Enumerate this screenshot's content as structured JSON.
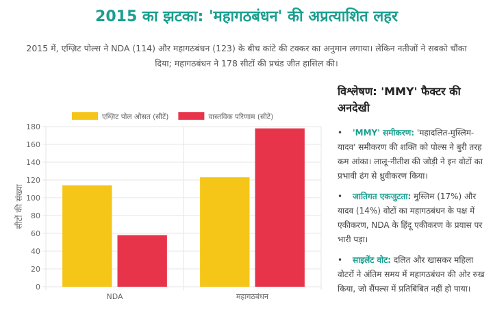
{
  "header": {
    "title": "2015 का झटका: 'महागठबंधन' की अप्रत्याशित लहर",
    "subtitle": "2015 में, एग्ज़िट पोल्स ने NDA (114) और महागठबंधन (123) के बीच कांटे की टक्कर का अनुमान लगाया। लेकिन नतीजों ने सबको चौंका दिया; महागठबंधन ने 178 सीटों की प्रचंड जीत हासिल की।"
  },
  "colors": {
    "accent": "#1a9e8f",
    "exit_poll": "#f5c518",
    "actual": "#e8344a"
  },
  "chart_data": {
    "type": "bar",
    "categories": [
      "NDA",
      "महागठबंधन"
    ],
    "series": [
      {
        "name": "एग्ज़िट पोल औसत (सीटें)",
        "values": [
          114,
          123
        ],
        "color": "#f5c518"
      },
      {
        "name": "वास्तविक परिणाम (सीटें)",
        "values": [
          58,
          178
        ],
        "color": "#e8344a"
      }
    ],
    "ylabel": "सीटों की संख्या",
    "xlabel": "",
    "ylim": [
      0,
      180
    ],
    "yticks": [
      0,
      20,
      40,
      60,
      80,
      100,
      120,
      140,
      160,
      180
    ],
    "grid": true,
    "legend": "top"
  },
  "analysis": {
    "heading": "विश्लेषण: 'MMY' फैक्टर की अनदेखी",
    "items": [
      {
        "label": "'MMY' समीकरण:",
        "text": " 'महादलित-मुस्लिम-यादव' समीकरण की शक्ति को पोल्स ने बुरी तरह कम आंका। लालू-नीतीश की जोड़ी ने इन वोटों का प्रभावी ढंग से ध्रुवीकरण किया।"
      },
      {
        "label": "जातिगत एकजुटता:",
        "text": " मुस्लिम (17%) और यादव (14%) वोटों का महागठबंधन के पक्ष में एकीकरण, NDA के हिंदू एकीकरण के प्रयास पर भारी पड़ा।"
      },
      {
        "label": "साइलेंट वोट:",
        "text": " दलित और खासकर महिला वोटरों ने अंतिम समय में महागठबंधन की ओर रुख किया, जो सैंपल्स में प्रतिबिंबित नहीं हो पाया।"
      }
    ]
  }
}
